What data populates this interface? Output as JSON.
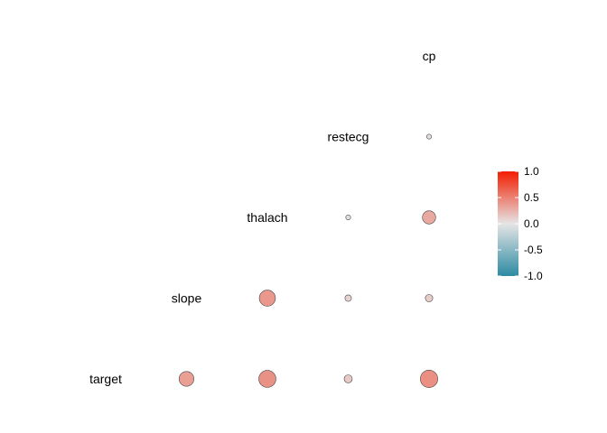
{
  "chart_data": {
    "type": "heatmap",
    "title": "",
    "variables": [
      "target",
      "slope",
      "thalach",
      "restecg",
      "cp"
    ],
    "cells": [
      {
        "row": "restecg",
        "col": "cp",
        "value": 0.04
      },
      {
        "row": "thalach",
        "col": "restecg",
        "value": -0.04
      },
      {
        "row": "thalach",
        "col": "cp",
        "value": 0.3
      },
      {
        "row": "slope",
        "col": "thalach",
        "value": 0.39
      },
      {
        "row": "slope",
        "col": "restecg",
        "value": 0.09
      },
      {
        "row": "slope",
        "col": "cp",
        "value": 0.12
      },
      {
        "row": "target",
        "col": "slope",
        "value": 0.35
      },
      {
        "row": "target",
        "col": "thalach",
        "value": 0.42
      },
      {
        "row": "target",
        "col": "restecg",
        "value": 0.14
      },
      {
        "row": "target",
        "col": "cp",
        "value": 0.43
      }
    ],
    "colorbar": {
      "limits": [
        -1,
        1
      ],
      "ticks": [
        "1.0",
        "0.5",
        "0.0",
        "-0.5",
        "-1.0"
      ],
      "tick_values": [
        1,
        0.5,
        0,
        -0.5,
        -1
      ],
      "colors": {
        "low": "#2c8ba3",
        "mid": "#e5e5e5",
        "high": "#f21d00"
      }
    },
    "legend_position": "right",
    "grid": false
  }
}
